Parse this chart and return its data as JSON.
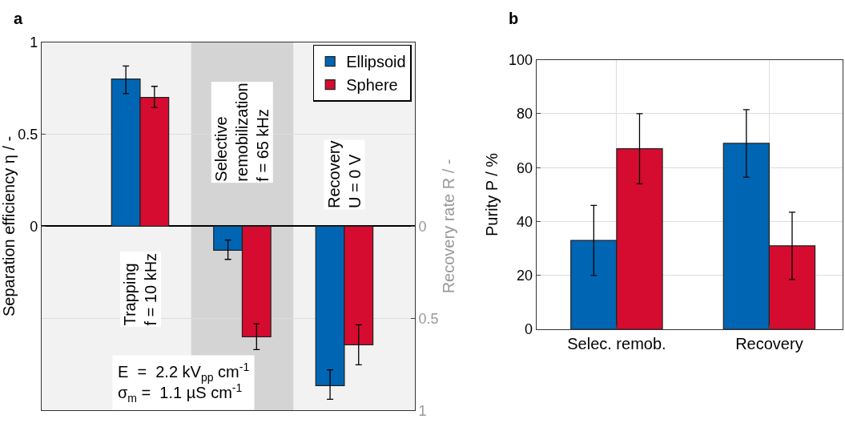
{
  "chart_data": [
    {
      "type": "bar",
      "title": "a",
      "ylabel": "Separation efficiency η / -",
      "y2label": "Recovery rate R / -",
      "categories": [
        null,
        null,
        null
      ],
      "series": [
        {
          "name": "Ellipsoid",
          "color": "#0066b3",
          "values": [
            0.8,
            null,
            null
          ],
          "errors": [
            [
              0.72,
              0.87
            ],
            null,
            null
          ]
        },
        {
          "name": "Sphere",
          "color": "#d50c2f",
          "values": [
            0.7,
            null,
            null
          ],
          "errors": [
            [
              0.645,
              0.76
            ],
            null,
            null
          ]
        },
        {
          "color": "#0066b3",
          "axis": "y2",
          "values": [
            null,
            0.13,
            0.866
          ],
          "errors": [
            null,
            [
              0.075,
              0.18
            ],
            [
              0.78,
              0.94
            ]
          ]
        },
        {
          "color": "#d50c2f",
          "axis": "y2",
          "values": [
            null,
            0.6,
            0.644
          ],
          "errors": [
            null,
            [
              0.53,
              0.67
            ],
            [
              0.535,
              0.753
            ]
          ]
        }
      ],
      "ylim": [
        -1,
        1
      ],
      "yticks": [
        0,
        0.5,
        1
      ],
      "y2lim": [
        1,
        -1
      ],
      "y2ticks": [
        0,
        0.5,
        1
      ],
      "annotations": [
        "Trapping\nf = 10 kHz",
        "Selective\nremobilization\nf = 65 kHz",
        "Recovery\nU = 0 V",
        "E  =  2.2 kV$_{pp}$ cm$^{-1}$\nσ$_{m}$ =  1.1 µS cm$^{-1}$"
      ],
      "grid": "y",
      "legend": "top right"
    },
    {
      "type": "bar",
      "title": "b",
      "ylabel": "Purity P / %",
      "categories": [
        "Selec. remob.",
        "Recovery"
      ],
      "series": [
        {
          "color": "#0066b3",
          "values": [
            33,
            69
          ],
          "errors": [
            [
              20,
              46
            ],
            [
              56.5,
              81.5
            ]
          ]
        },
        {
          "color": "#d50c2f",
          "values": [
            67,
            31
          ],
          "errors": [
            [
              54,
              80
            ],
            [
              18.5,
              43.5
            ]
          ]
        }
      ],
      "ylim": [
        0,
        100
      ],
      "yticks": [
        0,
        20,
        40,
        60,
        80,
        100
      ],
      "grid": true,
      "legend": false
    }
  ]
}
